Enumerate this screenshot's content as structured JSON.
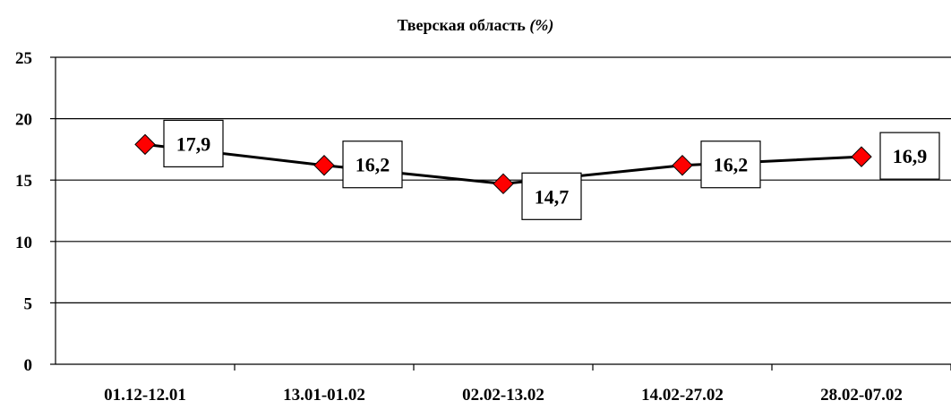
{
  "chart_data": {
    "type": "line",
    "title": "Тверская область",
    "title_unit": "(%)",
    "xlabel": "",
    "ylabel": "",
    "categories": [
      "01.12-12.01",
      "13.01-01.02",
      "02.02-13.02",
      "14.02-27.02",
      "28.02-07.02"
    ],
    "series": [
      {
        "values": [
          17.9,
          16.2,
          14.7,
          16.2,
          16.9
        ],
        "labels": [
          "17,9",
          "16,2",
          "14,7",
          "16,2",
          "16,9"
        ]
      }
    ],
    "ylim": [
      0,
      25
    ],
    "yticks": [
      0,
      5,
      10,
      15,
      20,
      25
    ],
    "ytick_labels": [
      "0",
      "5",
      "10",
      "15",
      "20",
      "25"
    ],
    "grid": true,
    "legend": "none",
    "colors": {
      "line": "#000000",
      "marker": "#ff0000",
      "grid": "#000000"
    }
  }
}
